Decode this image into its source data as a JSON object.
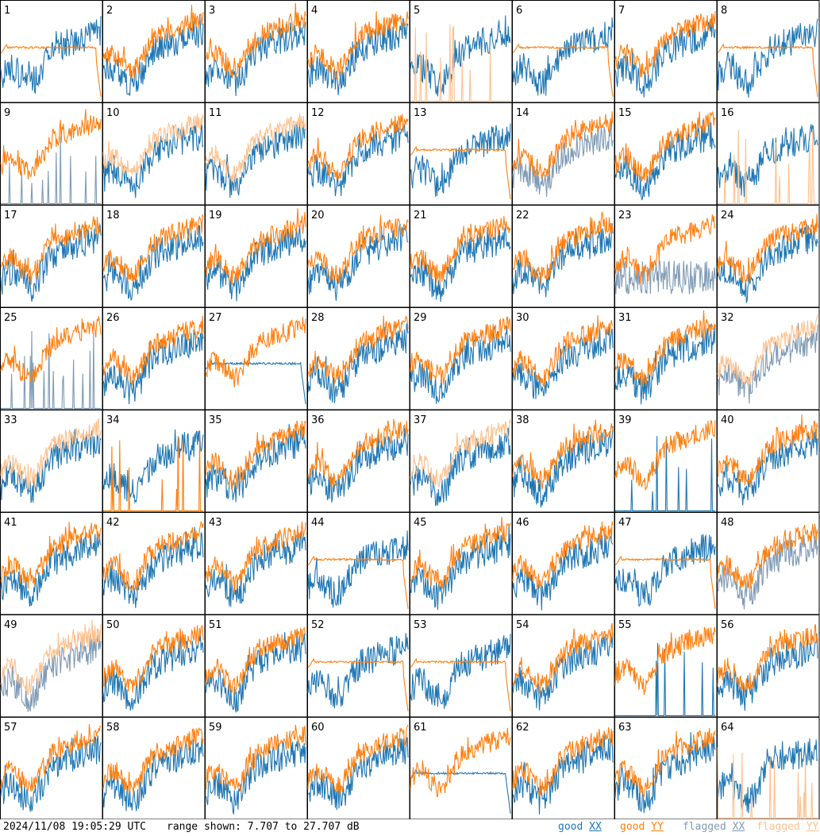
{
  "footer": {
    "timestamp": "2024/11/08 19:05:29 UTC",
    "range_text": "range shown: 7.707 to 27.707 dB"
  },
  "legend": [
    {
      "label": "good XX",
      "word": "good",
      "pol": "XX",
      "color": "#1f77b4"
    },
    {
      "label": "good YY",
      "word": "good",
      "pol": "YY",
      "color": "#ff7f0e"
    },
    {
      "label": "flagged XX",
      "word": "flagged",
      "pol": "XX",
      "color": "#7f9ab5"
    },
    {
      "label": "flagged YY",
      "word": "flagged",
      "pol": "YY",
      "color": "#ffc08c"
    }
  ],
  "chart_data": {
    "type": "line",
    "description_of_grid": "8x8 small-multiple spectra, one per input",
    "x_axis": "frequency channel (unlabeled)",
    "y_range_db": [
      7.707,
      27.707
    ],
    "ylabel": "dB",
    "panels": [
      {
        "id": 1,
        "xx": "good",
        "yy": "good",
        "profile": "yy-flat-band"
      },
      {
        "id": 2,
        "xx": "good",
        "yy": "good",
        "profile": "normal"
      },
      {
        "id": 3,
        "xx": "good",
        "yy": "good",
        "profile": "normal"
      },
      {
        "id": 4,
        "xx": "good",
        "yy": "good",
        "profile": "normal"
      },
      {
        "id": 5,
        "xx": "good",
        "yy": "flagged",
        "profile": "yy-dropout"
      },
      {
        "id": 6,
        "xx": "good",
        "yy": "good",
        "profile": "flat-both"
      },
      {
        "id": 7,
        "xx": "good",
        "yy": "good",
        "profile": "normal"
      },
      {
        "id": 8,
        "xx": "good",
        "yy": "good",
        "profile": "yy-flat-band"
      },
      {
        "id": 9,
        "xx": "flagged",
        "yy": "good",
        "profile": "xx-dropout"
      },
      {
        "id": 10,
        "xx": "good",
        "yy": "flagged",
        "profile": "normal"
      },
      {
        "id": 11,
        "xx": "good",
        "yy": "flagged",
        "profile": "normal"
      },
      {
        "id": 12,
        "xx": "good",
        "yy": "good",
        "profile": "normal"
      },
      {
        "id": 13,
        "xx": "good",
        "yy": "good",
        "profile": "yy-flat-band"
      },
      {
        "id": 14,
        "xx": "flagged",
        "yy": "good",
        "profile": "normal"
      },
      {
        "id": 15,
        "xx": "good",
        "yy": "good",
        "profile": "normal"
      },
      {
        "id": 16,
        "xx": "good",
        "yy": "flagged",
        "profile": "yy-dropout"
      },
      {
        "id": 17,
        "xx": "good",
        "yy": "good",
        "profile": "normal"
      },
      {
        "id": 18,
        "xx": "good",
        "yy": "good",
        "profile": "normal"
      },
      {
        "id": 19,
        "xx": "good",
        "yy": "good",
        "profile": "normal"
      },
      {
        "id": 20,
        "xx": "good",
        "yy": "good",
        "profile": "normal"
      },
      {
        "id": 21,
        "xx": "good",
        "yy": "good",
        "profile": "normal"
      },
      {
        "id": 22,
        "xx": "good",
        "yy": "good",
        "profile": "normal"
      },
      {
        "id": 23,
        "xx": "flagged",
        "yy": "good",
        "profile": "xx-noisy-low"
      },
      {
        "id": 24,
        "xx": "good",
        "yy": "good",
        "profile": "normal"
      },
      {
        "id": 25,
        "xx": "flagged",
        "yy": "good",
        "profile": "xx-dropout"
      },
      {
        "id": 26,
        "xx": "good",
        "yy": "good",
        "profile": "normal"
      },
      {
        "id": 27,
        "xx": "good",
        "yy": "good",
        "profile": "xx-flat-band"
      },
      {
        "id": 28,
        "xx": "good",
        "yy": "good",
        "profile": "normal"
      },
      {
        "id": 29,
        "xx": "good",
        "yy": "good",
        "profile": "normal"
      },
      {
        "id": 30,
        "xx": "good",
        "yy": "good",
        "profile": "normal"
      },
      {
        "id": 31,
        "xx": "good",
        "yy": "good",
        "profile": "normal"
      },
      {
        "id": 32,
        "xx": "flagged",
        "yy": "flagged",
        "profile": "normal"
      },
      {
        "id": 33,
        "xx": "good",
        "yy": "flagged",
        "profile": "normal"
      },
      {
        "id": 34,
        "xx": "good",
        "yy": "good",
        "profile": "yy-dropout"
      },
      {
        "id": 35,
        "xx": "good",
        "yy": "good",
        "profile": "normal"
      },
      {
        "id": 36,
        "xx": "good",
        "yy": "good",
        "profile": "normal"
      },
      {
        "id": 37,
        "xx": "good",
        "yy": "flagged",
        "profile": "normal"
      },
      {
        "id": 38,
        "xx": "good",
        "yy": "good",
        "profile": "normal"
      },
      {
        "id": 39,
        "xx": "good",
        "yy": "good",
        "profile": "xx-dropout"
      },
      {
        "id": 40,
        "xx": "good",
        "yy": "good",
        "profile": "normal"
      },
      {
        "id": 41,
        "xx": "good",
        "yy": "good",
        "profile": "normal"
      },
      {
        "id": 42,
        "xx": "good",
        "yy": "good",
        "profile": "normal"
      },
      {
        "id": 43,
        "xx": "good",
        "yy": "good",
        "profile": "normal"
      },
      {
        "id": 44,
        "xx": "good",
        "yy": "good",
        "profile": "yy-flat-band"
      },
      {
        "id": 45,
        "xx": "good",
        "yy": "good",
        "profile": "normal"
      },
      {
        "id": 46,
        "xx": "good",
        "yy": "good",
        "profile": "normal"
      },
      {
        "id": 47,
        "xx": "good",
        "yy": "good",
        "profile": "yy-flat-band"
      },
      {
        "id": 48,
        "xx": "flagged",
        "yy": "good",
        "profile": "normal"
      },
      {
        "id": 49,
        "xx": "flagged",
        "yy": "flagged",
        "profile": "normal"
      },
      {
        "id": 50,
        "xx": "good",
        "yy": "good",
        "profile": "normal"
      },
      {
        "id": 51,
        "xx": "good",
        "yy": "good",
        "profile": "normal"
      },
      {
        "id": 52,
        "xx": "good",
        "yy": "good",
        "profile": "yy-flat-band"
      },
      {
        "id": 53,
        "xx": "good",
        "yy": "good",
        "profile": "yy-flat-band"
      },
      {
        "id": 54,
        "xx": "good",
        "yy": "good",
        "profile": "normal"
      },
      {
        "id": 55,
        "xx": "good",
        "yy": "good",
        "profile": "xx-dropout"
      },
      {
        "id": 56,
        "xx": "good",
        "yy": "good",
        "profile": "normal"
      },
      {
        "id": 57,
        "xx": "good",
        "yy": "good",
        "profile": "normal"
      },
      {
        "id": 58,
        "xx": "good",
        "yy": "good",
        "profile": "normal"
      },
      {
        "id": 59,
        "xx": "good",
        "yy": "good",
        "profile": "normal"
      },
      {
        "id": 60,
        "xx": "good",
        "yy": "good",
        "profile": "normal"
      },
      {
        "id": 61,
        "xx": "good",
        "yy": "good",
        "profile": "xx-flat-band"
      },
      {
        "id": 62,
        "xx": "good",
        "yy": "good",
        "profile": "normal"
      },
      {
        "id": 63,
        "xx": "good",
        "yy": "good",
        "profile": "normal"
      },
      {
        "id": 64,
        "xx": "good",
        "yy": "flagged",
        "profile": "yy-dropout"
      }
    ]
  }
}
